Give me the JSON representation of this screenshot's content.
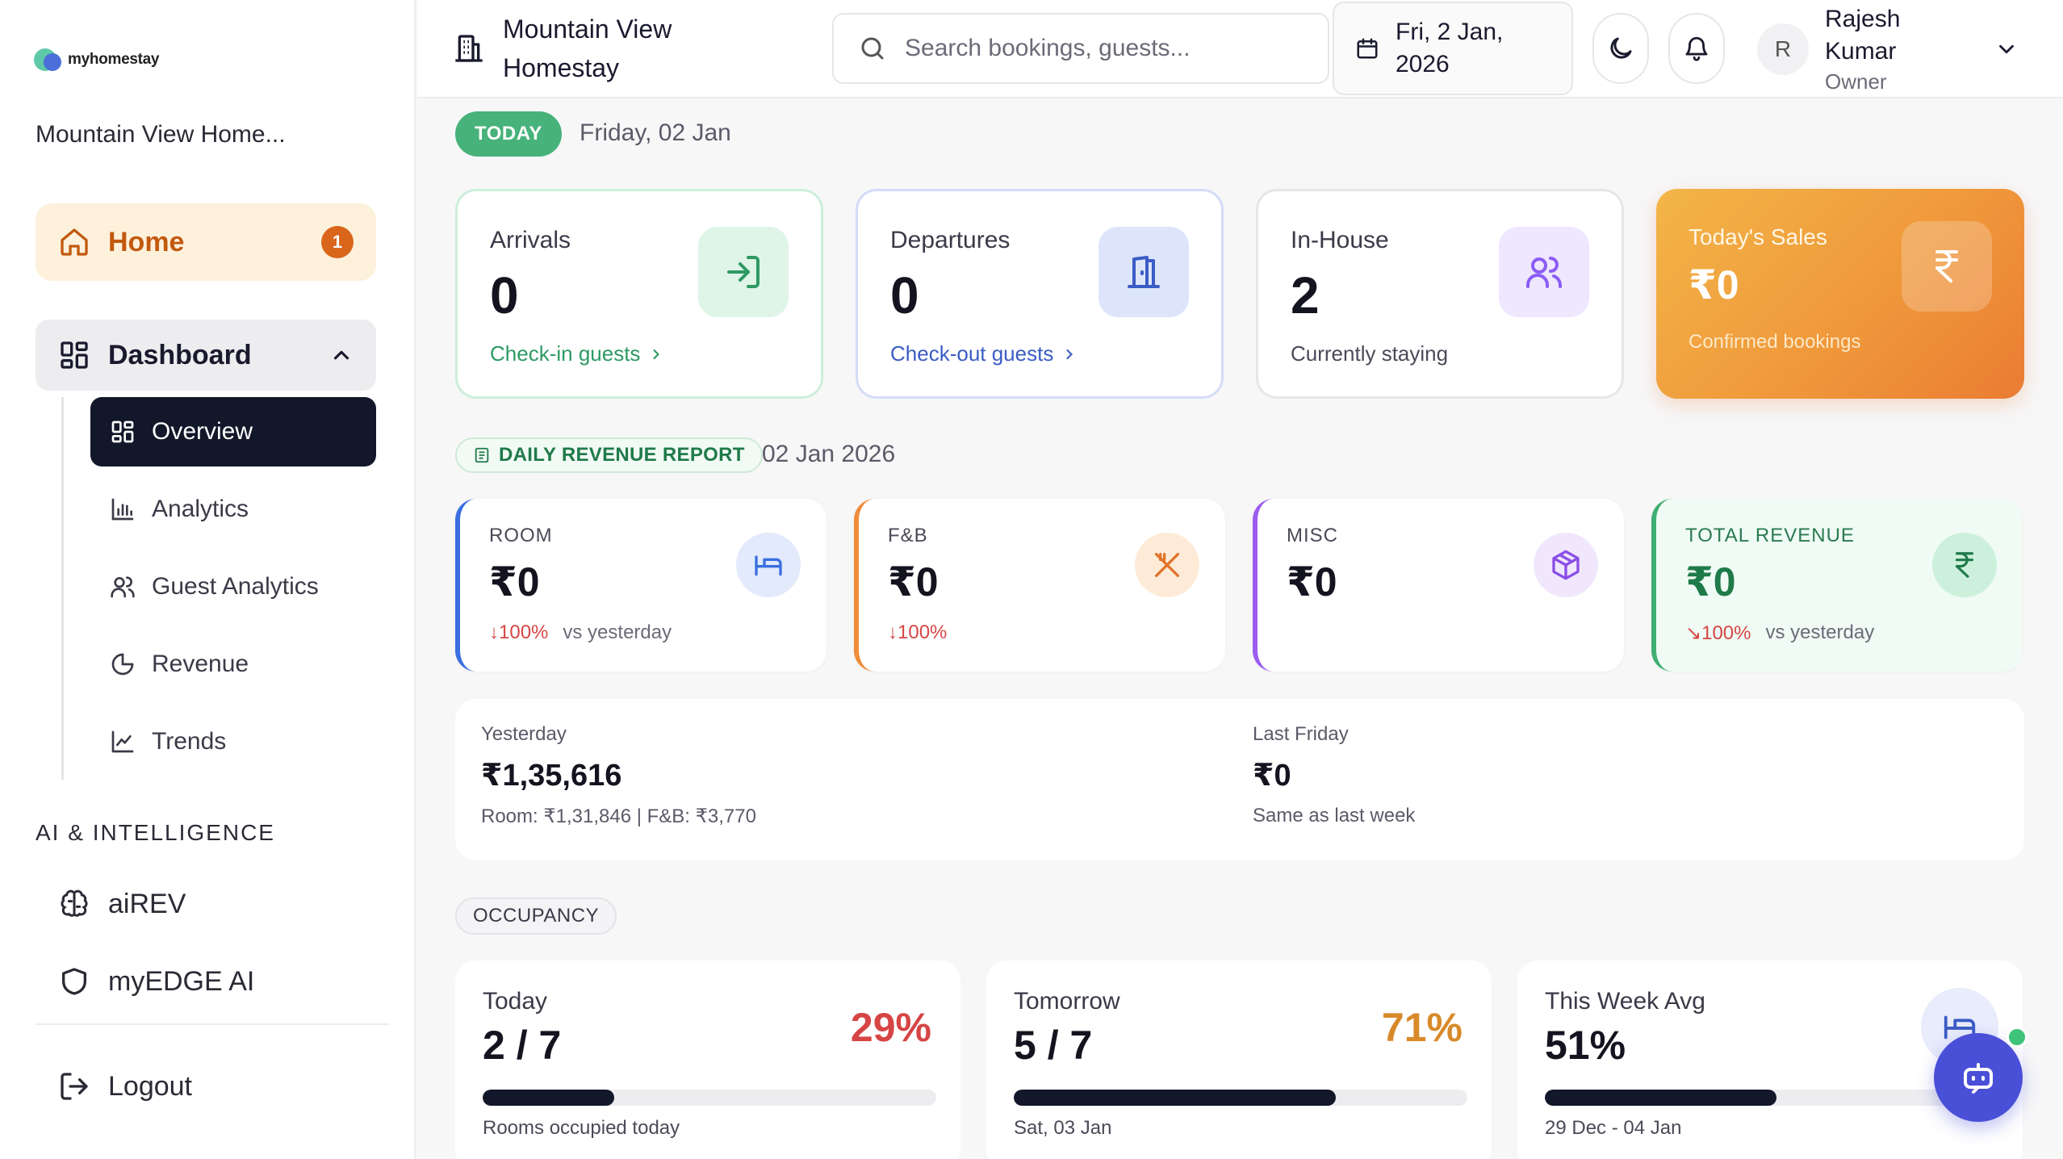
{
  "sidebar": {
    "logo_text": "myhomestay",
    "property_name": "Mountain View Home...",
    "home": {
      "label": "Home",
      "badge": "1"
    },
    "dashboard": {
      "label": "Dashboard"
    },
    "sub_items": [
      {
        "label": "Overview",
        "icon": "grid-icon",
        "active": true
      },
      {
        "label": "Analytics",
        "icon": "bar-chart-icon",
        "active": false
      },
      {
        "label": "Guest Analytics",
        "icon": "users-icon",
        "active": false
      },
      {
        "label": "Revenue",
        "icon": "pie-chart-icon",
        "active": false
      },
      {
        "label": "Trends",
        "icon": "line-chart-icon",
        "active": false
      }
    ],
    "ai_section_title": "AI & INTELLIGENCE",
    "ai_items": [
      {
        "label": "aiREV",
        "icon": "brain-icon"
      },
      {
        "label": "myEDGE AI",
        "icon": "shield-icon"
      }
    ],
    "logout_label": "Logout"
  },
  "header": {
    "property_name": "Mountain View Homestay",
    "search_placeholder": "Search bookings, guests...",
    "date": "Fri, 2 Jan, 2026",
    "user": {
      "initial": "R",
      "name": "Rajesh Kumar",
      "role": "Owner"
    }
  },
  "today": {
    "pill": "TODAY",
    "date": "Friday, 02 Jan"
  },
  "stats": {
    "arrivals": {
      "title": "Arrivals",
      "value": "0",
      "link": "Check-in guests",
      "color": "#2d9a63"
    },
    "departures": {
      "title": "Departures",
      "value": "0",
      "link": "Check-out guests",
      "color": "#3b5cc4"
    },
    "in_house": {
      "title": "In-House",
      "value": "2",
      "sub": "Currently staying",
      "color": "#8b5cf6"
    },
    "sales": {
      "title": "Today's Sales",
      "value": "₹0",
      "sub": "Confirmed bookings"
    }
  },
  "revenue_report": {
    "pill": "DAILY REVENUE REPORT",
    "date": "02 Jan 2026",
    "cards": {
      "room": {
        "title": "ROOM",
        "value": "₹0",
        "change": "↓100%",
        "compare": "vs yesterday",
        "color": "#3b6fe0"
      },
      "fnb": {
        "title": "F&B",
        "value": "₹0",
        "change": "↓100%",
        "color": "#f08c3a"
      },
      "misc": {
        "title": "MISC",
        "value": "₹0",
        "color": "#9b5cf0"
      },
      "total": {
        "title": "TOTAL REVENUE",
        "value": "₹0",
        "change": "↘100%",
        "compare": "vs yesterday",
        "color": "#3fae72"
      }
    }
  },
  "comparison": {
    "yesterday": {
      "title": "Yesterday",
      "value": "₹1,35,616",
      "sub": "Room: ₹1,31,846 | F&B: ₹3,770"
    },
    "last_friday": {
      "title": "Last Friday",
      "value": "₹0",
      "sub": "Same as last week"
    }
  },
  "occupancy": {
    "pill": "OCCUPANCY",
    "cards": [
      {
        "title": "Today",
        "value": "2 / 7",
        "percent": "29%",
        "fill": 0.29,
        "sub": "Rooms occupied today",
        "color": "#d64545"
      },
      {
        "title": "Tomorrow",
        "value": "5 / 7",
        "percent": "71%",
        "fill": 0.71,
        "sub": "Sat, 03 Jan",
        "color": "#d88a2a"
      },
      {
        "title": "This Week Avg",
        "value": "51%",
        "fill": 0.51,
        "sub": "29 Dec - 04 Jan"
      }
    ]
  }
}
